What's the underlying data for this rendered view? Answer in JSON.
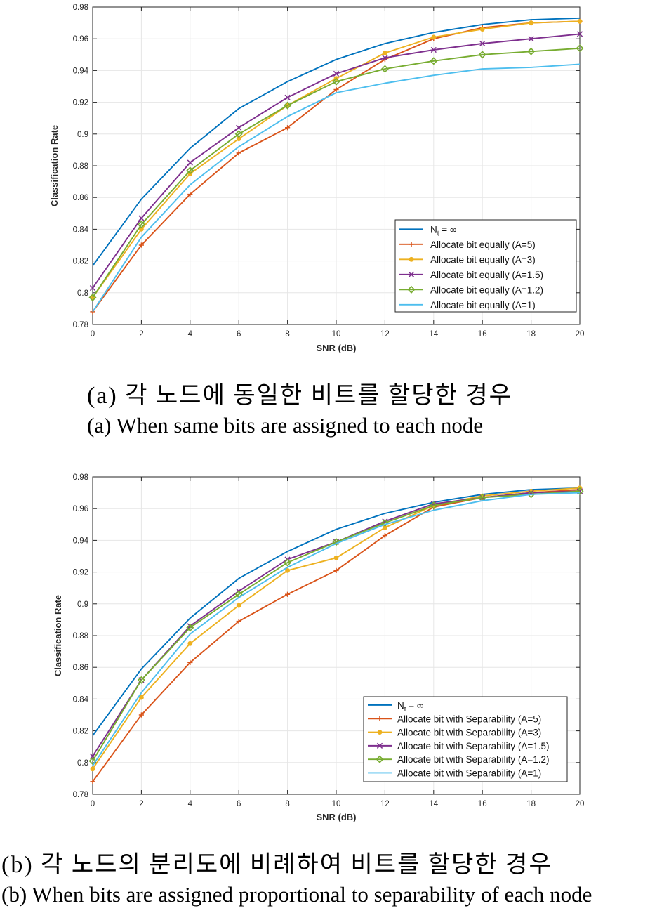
{
  "charts": [
    {
      "id": "a",
      "caption_ko": "(a) 각 노드에 동일한 비트를 할당한 경우",
      "caption_en": "(a) When same bits are assigned to each node"
    },
    {
      "id": "b",
      "caption_ko": "(b) 각 노드의 분리도에 비례하여 비트를 할당한 경우",
      "caption_en": "(b) When bits are assigned proportional to separability of each node"
    }
  ],
  "chart_data": [
    {
      "type": "line",
      "title": "",
      "xlabel": "SNR (dB)",
      "ylabel": "Classification Rate",
      "xlim": [
        0,
        20
      ],
      "ylim": [
        0.78,
        0.98
      ],
      "x_ticks": [
        "0",
        "2",
        "4",
        "6",
        "8",
        "10",
        "12",
        "14",
        "16",
        "18",
        "20"
      ],
      "y_ticks": [
        "0.78",
        "0.8",
        "0.82",
        "0.84",
        "0.86",
        "0.88",
        "0.9",
        "0.92",
        "0.94",
        "0.96",
        "0.98"
      ],
      "grid": true,
      "legend_position": "bottom-right",
      "x": [
        0,
        2,
        4,
        6,
        8,
        10,
        12,
        14,
        16,
        18,
        20
      ],
      "series": [
        {
          "name": "N",
          "name_sub": "t",
          "name_suffix": " = ∞",
          "color": "#0072BD",
          "marker": "none",
          "values": [
            0.817,
            0.859,
            0.891,
            0.916,
            0.933,
            0.947,
            0.957,
            0.964,
            0.969,
            0.972,
            0.973
          ]
        },
        {
          "name": "Allocate bit equally (A=5)",
          "color": "#D95319",
          "marker": "plus",
          "values": [
            0.788,
            0.83,
            0.862,
            0.888,
            0.904,
            0.928,
            0.947,
            0.96,
            0.967,
            0.97,
            0.971
          ]
        },
        {
          "name": "Allocate bit equally (A=3)",
          "color": "#EDB120",
          "marker": "dot",
          "values": [
            0.797,
            0.84,
            0.875,
            0.897,
            0.918,
            0.935,
            0.951,
            0.961,
            0.966,
            0.97,
            0.971
          ]
        },
        {
          "name": "Allocate bit equally (A=1.5)",
          "color": "#7E2F8E",
          "marker": "x",
          "values": [
            0.803,
            0.847,
            0.882,
            0.904,
            0.923,
            0.938,
            0.948,
            0.953,
            0.957,
            0.96,
            0.963
          ]
        },
        {
          "name": "Allocate bit equally (A=1.2)",
          "color": "#77AC30",
          "marker": "diamond",
          "values": [
            0.797,
            0.843,
            0.877,
            0.9,
            0.918,
            0.933,
            0.941,
            0.946,
            0.95,
            0.952,
            0.954
          ]
        },
        {
          "name": "Allocate bit equally (A=1)",
          "color": "#4DBEEE",
          "marker": "none",
          "values": [
            0.788,
            0.835,
            0.868,
            0.892,
            0.911,
            0.926,
            0.932,
            0.937,
            0.941,
            0.942,
            0.944
          ]
        }
      ]
    },
    {
      "type": "line",
      "title": "",
      "xlabel": "SNR (dB)",
      "ylabel": "Classification Rate",
      "xlim": [
        0,
        20
      ],
      "ylim": [
        0.78,
        0.98
      ],
      "x_ticks": [
        "0",
        "2",
        "4",
        "6",
        "8",
        "10",
        "12",
        "14",
        "16",
        "18",
        "20"
      ],
      "y_ticks": [
        "0.78",
        "0.8",
        "0.82",
        "0.84",
        "0.86",
        "0.88",
        "0.9",
        "0.92",
        "0.94",
        "0.96",
        "0.98"
      ],
      "grid": true,
      "legend_position": "bottom-right",
      "x": [
        0,
        2,
        4,
        6,
        8,
        10,
        12,
        14,
        16,
        18,
        20
      ],
      "series": [
        {
          "name": "N",
          "name_sub": "t",
          "name_suffix": " = ∞",
          "color": "#0072BD",
          "marker": "none",
          "values": [
            0.817,
            0.859,
            0.891,
            0.916,
            0.933,
            0.947,
            0.957,
            0.964,
            0.969,
            0.972,
            0.973
          ]
        },
        {
          "name": "Allocate bit with Separability (A=5)",
          "color": "#D95319",
          "marker": "plus",
          "values": [
            0.788,
            0.83,
            0.863,
            0.889,
            0.906,
            0.921,
            0.943,
            0.961,
            0.967,
            0.97,
            0.972
          ]
        },
        {
          "name": "Allocate bit with Separability (A=3)",
          "color": "#EDB120",
          "marker": "dot",
          "values": [
            0.796,
            0.841,
            0.875,
            0.899,
            0.921,
            0.929,
            0.948,
            0.962,
            0.968,
            0.971,
            0.973
          ]
        },
        {
          "name": "Allocate bit with Separability (A=1.5)",
          "color": "#7E2F8E",
          "marker": "x",
          "values": [
            0.804,
            0.852,
            0.886,
            0.908,
            0.928,
            0.939,
            0.952,
            0.963,
            0.967,
            0.97,
            0.971
          ]
        },
        {
          "name": "Allocate bit with Separability (A=1.2)",
          "color": "#77AC30",
          "marker": "diamond",
          "values": [
            0.801,
            0.852,
            0.885,
            0.906,
            0.926,
            0.939,
            0.951,
            0.962,
            0.967,
            0.969,
            0.971
          ]
        },
        {
          "name": "Allocate bit with Separability (A=1)",
          "color": "#4DBEEE",
          "marker": "none",
          "values": [
            0.798,
            0.844,
            0.881,
            0.904,
            0.923,
            0.938,
            0.95,
            0.959,
            0.965,
            0.969,
            0.97
          ]
        }
      ]
    }
  ]
}
